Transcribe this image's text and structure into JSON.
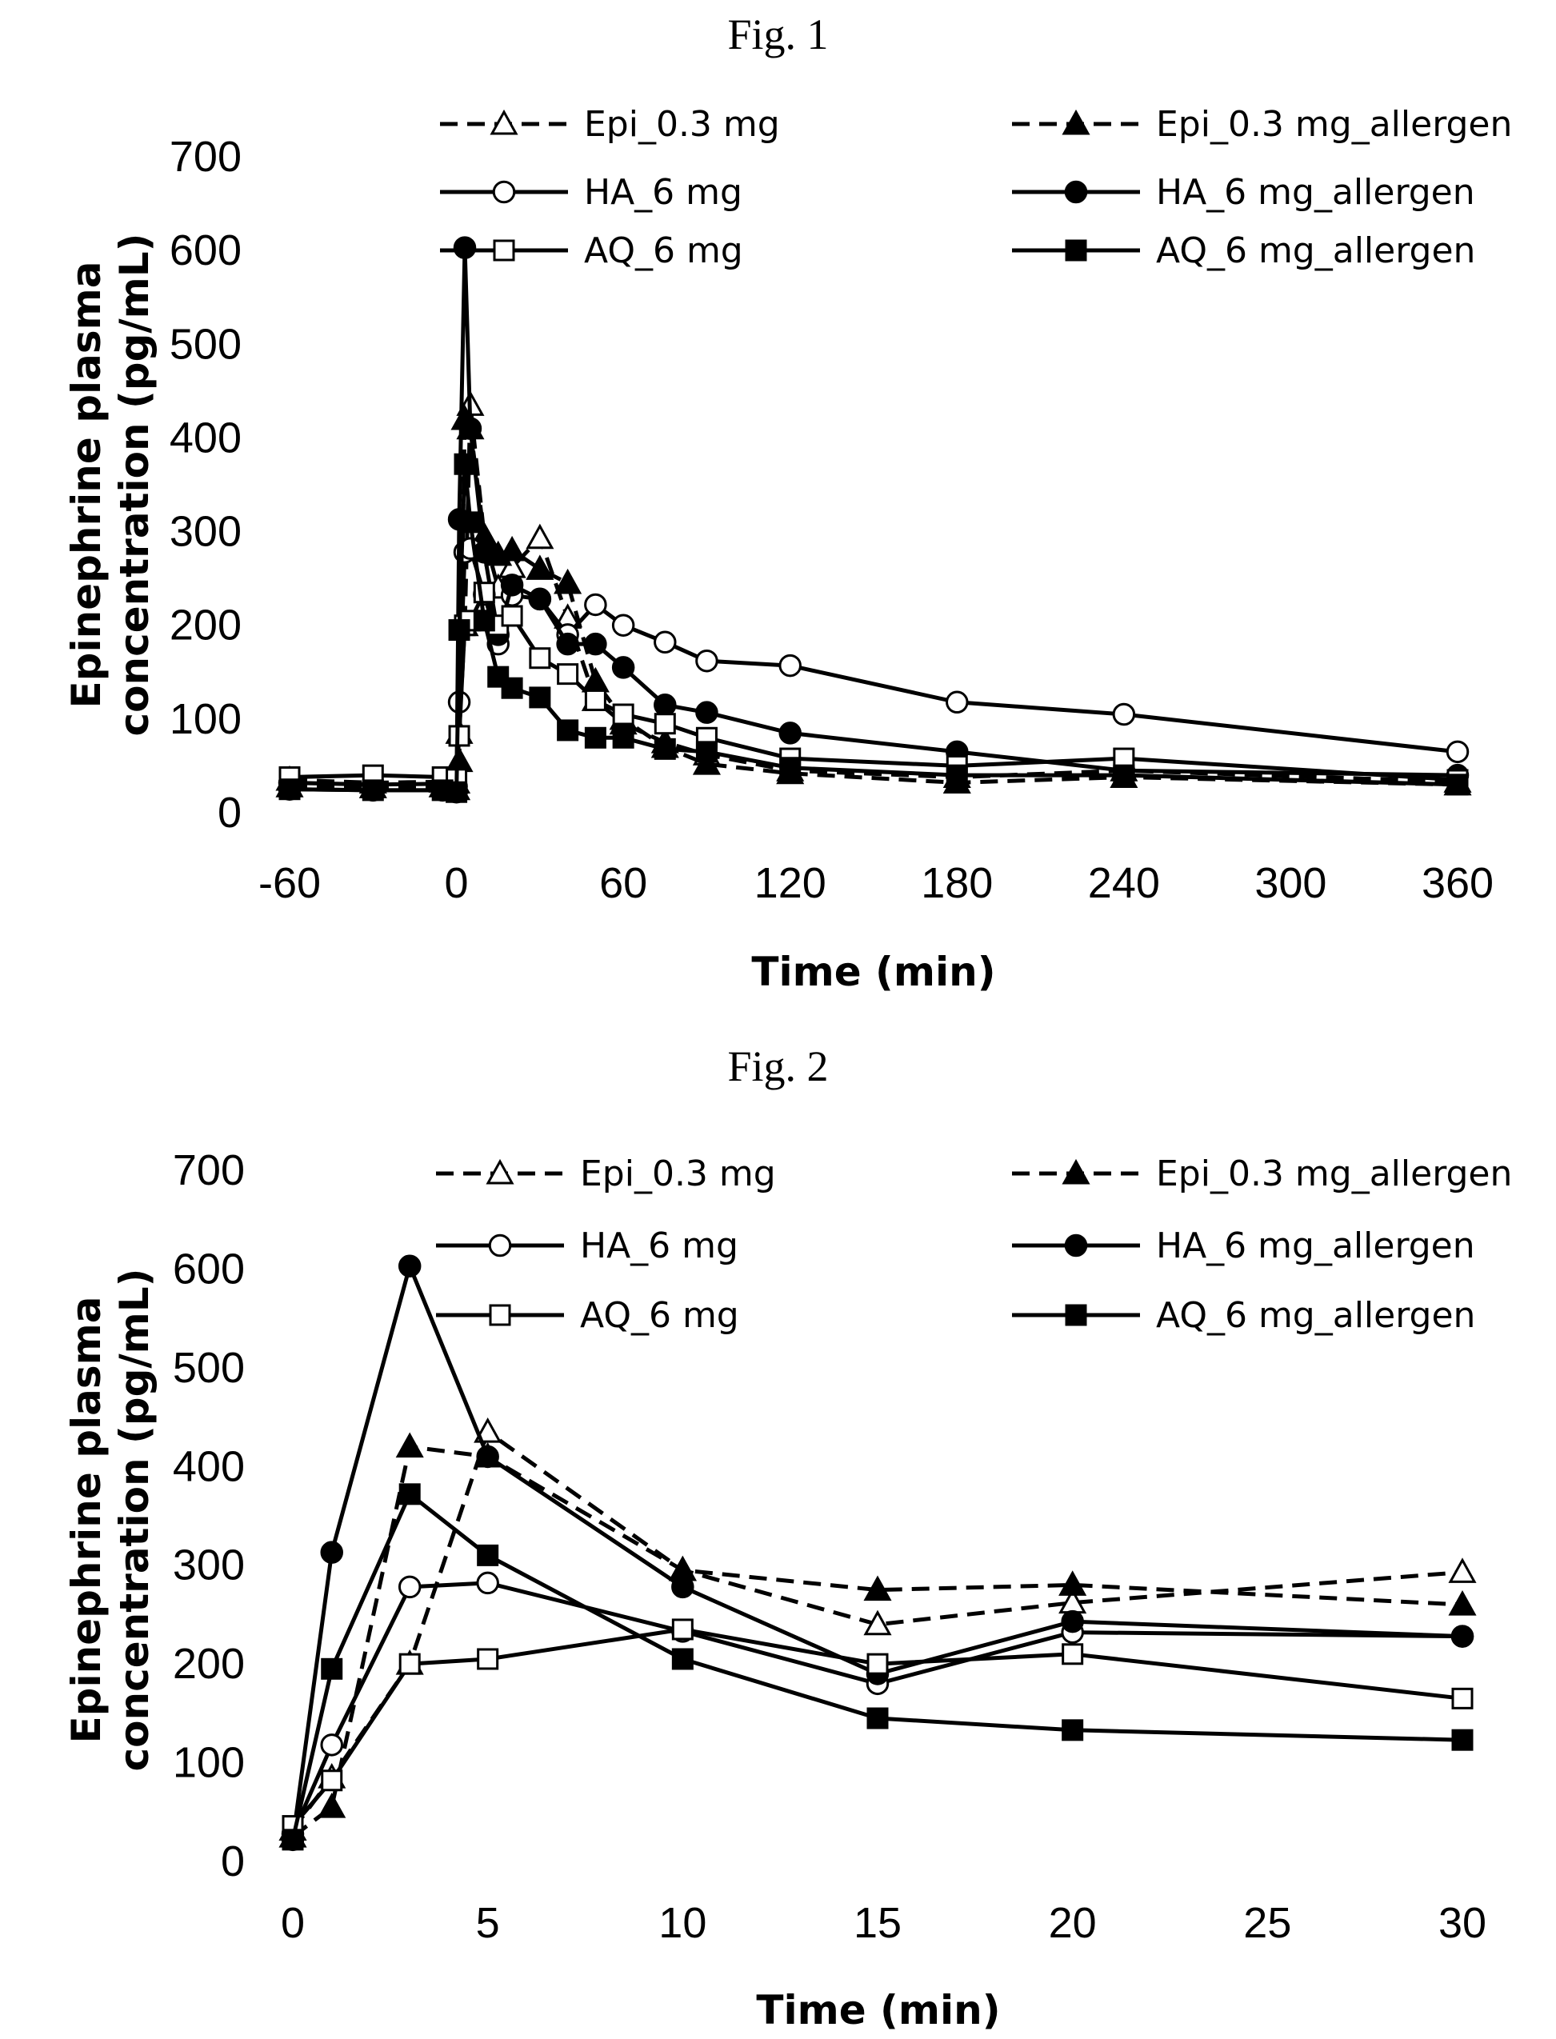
{
  "figures": [
    {
      "title": "Fig. 1"
    },
    {
      "title": "Fig. 2"
    }
  ],
  "colors": {
    "line": "#000000",
    "background": "#ffffff"
  },
  "chart_data": [
    {
      "type": "line",
      "xlabel": "Time (min)",
      "ylabel": "Epinephrine plasma concentration (pg/mL)",
      "xlim": [
        -60,
        360
      ],
      "ylim": [
        0,
        700
      ],
      "xticks": [
        -60,
        0,
        60,
        120,
        180,
        240,
        300,
        360
      ],
      "yticks": [
        0,
        100,
        200,
        300,
        400,
        500,
        600,
        700
      ],
      "legend_position": "top",
      "series": [
        {
          "name": "Epi_0.3 mg",
          "marker": "triangle-open",
          "dash": "dashed",
          "x": [
            -60,
            -30,
            -5,
            0,
            1,
            3,
            5,
            10,
            15,
            20,
            30,
            40,
            50,
            60,
            75,
            90,
            120,
            180,
            240,
            360
          ],
          "y": [
            35,
            32,
            33,
            32,
            85,
            200,
            435,
            295,
            240,
            262,
            293,
            208,
            120,
            95,
            75,
            62,
            45,
            38,
            45,
            33
          ]
        },
        {
          "name": "Epi_0.3 mg_allergen",
          "marker": "triangle-filled",
          "dash": "dashed",
          "x": [
            -60,
            -30,
            -5,
            0,
            1,
            3,
            5,
            10,
            15,
            20,
            30,
            40,
            50,
            60,
            75,
            90,
            120,
            180,
            240,
            360
          ],
          "y": [
            28,
            27,
            28,
            25,
            55,
            420,
            410,
            295,
            275,
            280,
            260,
            245,
            140,
            100,
            70,
            52,
            42,
            32,
            38,
            30
          ]
        },
        {
          "name": "HA_6 mg",
          "marker": "circle-open",
          "dash": "solid",
          "x": [
            -60,
            -30,
            -5,
            0,
            1,
            3,
            5,
            10,
            15,
            20,
            30,
            40,
            50,
            60,
            75,
            90,
            120,
            180,
            240,
            360
          ],
          "y": [
            32,
            30,
            31,
            28,
            118,
            278,
            282,
            233,
            180,
            232,
            228,
            190,
            222,
            200,
            182,
            162,
            157,
            118,
            105,
            65
          ]
        },
        {
          "name": "HA_6 mg_allergen",
          "marker": "circle-filled",
          "dash": "solid",
          "x": [
            -60,
            -30,
            -5,
            0,
            1,
            3,
            5,
            10,
            15,
            20,
            30,
            40,
            50,
            60,
            75,
            90,
            120,
            180,
            240,
            360
          ],
          "y": [
            25,
            24,
            24,
            22,
            313,
            603,
            410,
            278,
            190,
            243,
            228,
            180,
            180,
            155,
            115,
            107,
            85,
            65,
            45,
            40
          ]
        },
        {
          "name": "AQ_6 mg",
          "marker": "square-open",
          "dash": "solid",
          "x": [
            -60,
            -30,
            -5,
            0,
            1,
            3,
            5,
            10,
            15,
            20,
            30,
            40,
            50,
            60,
            75,
            90,
            120,
            180,
            240,
            360
          ],
          "y": [
            38,
            40,
            38,
            36,
            82,
            200,
            205,
            235,
            200,
            210,
            165,
            148,
            120,
            105,
            95,
            80,
            58,
            50,
            58,
            35
          ]
        },
        {
          "name": "AQ_6 mg_allergen",
          "marker": "square-filled",
          "dash": "solid",
          "x": [
            -60,
            -30,
            -5,
            0,
            1,
            3,
            5,
            10,
            15,
            20,
            30,
            40,
            50,
            60,
            75,
            90,
            120,
            180,
            240,
            360
          ],
          "y": [
            25,
            24,
            24,
            22,
            195,
            372,
            310,
            205,
            145,
            133,
            123,
            88,
            80,
            80,
            68,
            65,
            48,
            40,
            40,
            30
          ]
        }
      ]
    },
    {
      "type": "line",
      "xlabel": "Time (min)",
      "ylabel": "Epinephrine plasma concentration (pg/mL)",
      "xlim": [
        0,
        30
      ],
      "ylim": [
        0,
        700
      ],
      "xticks": [
        0,
        5,
        10,
        15,
        20,
        25,
        30
      ],
      "yticks": [
        0,
        100,
        200,
        300,
        400,
        500,
        600,
        700
      ],
      "legend_position": "top",
      "series": [
        {
          "name": "Epi_0.3 mg",
          "marker": "triangle-open",
          "dash": "dashed",
          "x": [
            0,
            1,
            3,
            5,
            10,
            15,
            20,
            30
          ],
          "y": [
            32,
            85,
            200,
            435,
            295,
            240,
            262,
            293
          ]
        },
        {
          "name": "Epi_0.3 mg_allergen",
          "marker": "triangle-filled",
          "dash": "dashed",
          "x": [
            0,
            1,
            3,
            5,
            10,
            15,
            20,
            30
          ],
          "y": [
            25,
            55,
            420,
            410,
            295,
            275,
            280,
            260
          ]
        },
        {
          "name": "HA_6 mg",
          "marker": "circle-open",
          "dash": "solid",
          "x": [
            0,
            1,
            3,
            5,
            10,
            15,
            20,
            30
          ],
          "y": [
            28,
            118,
            278,
            282,
            233,
            180,
            232,
            228
          ]
        },
        {
          "name": "HA_6 mg_allergen",
          "marker": "circle-filled",
          "dash": "solid",
          "x": [
            0,
            1,
            3,
            5,
            10,
            15,
            20,
            30
          ],
          "y": [
            22,
            313,
            603,
            410,
            278,
            190,
            243,
            228
          ]
        },
        {
          "name": "AQ_6 mg",
          "marker": "square-open",
          "dash": "solid",
          "x": [
            0,
            1,
            3,
            5,
            10,
            15,
            20,
            30
          ],
          "y": [
            36,
            82,
            200,
            205,
            235,
            200,
            210,
            165
          ]
        },
        {
          "name": "AQ_6 mg_allergen",
          "marker": "square-filled",
          "dash": "solid",
          "x": [
            0,
            1,
            3,
            5,
            10,
            15,
            20,
            30
          ],
          "y": [
            22,
            195,
            372,
            310,
            205,
            145,
            133,
            123
          ]
        }
      ]
    }
  ]
}
